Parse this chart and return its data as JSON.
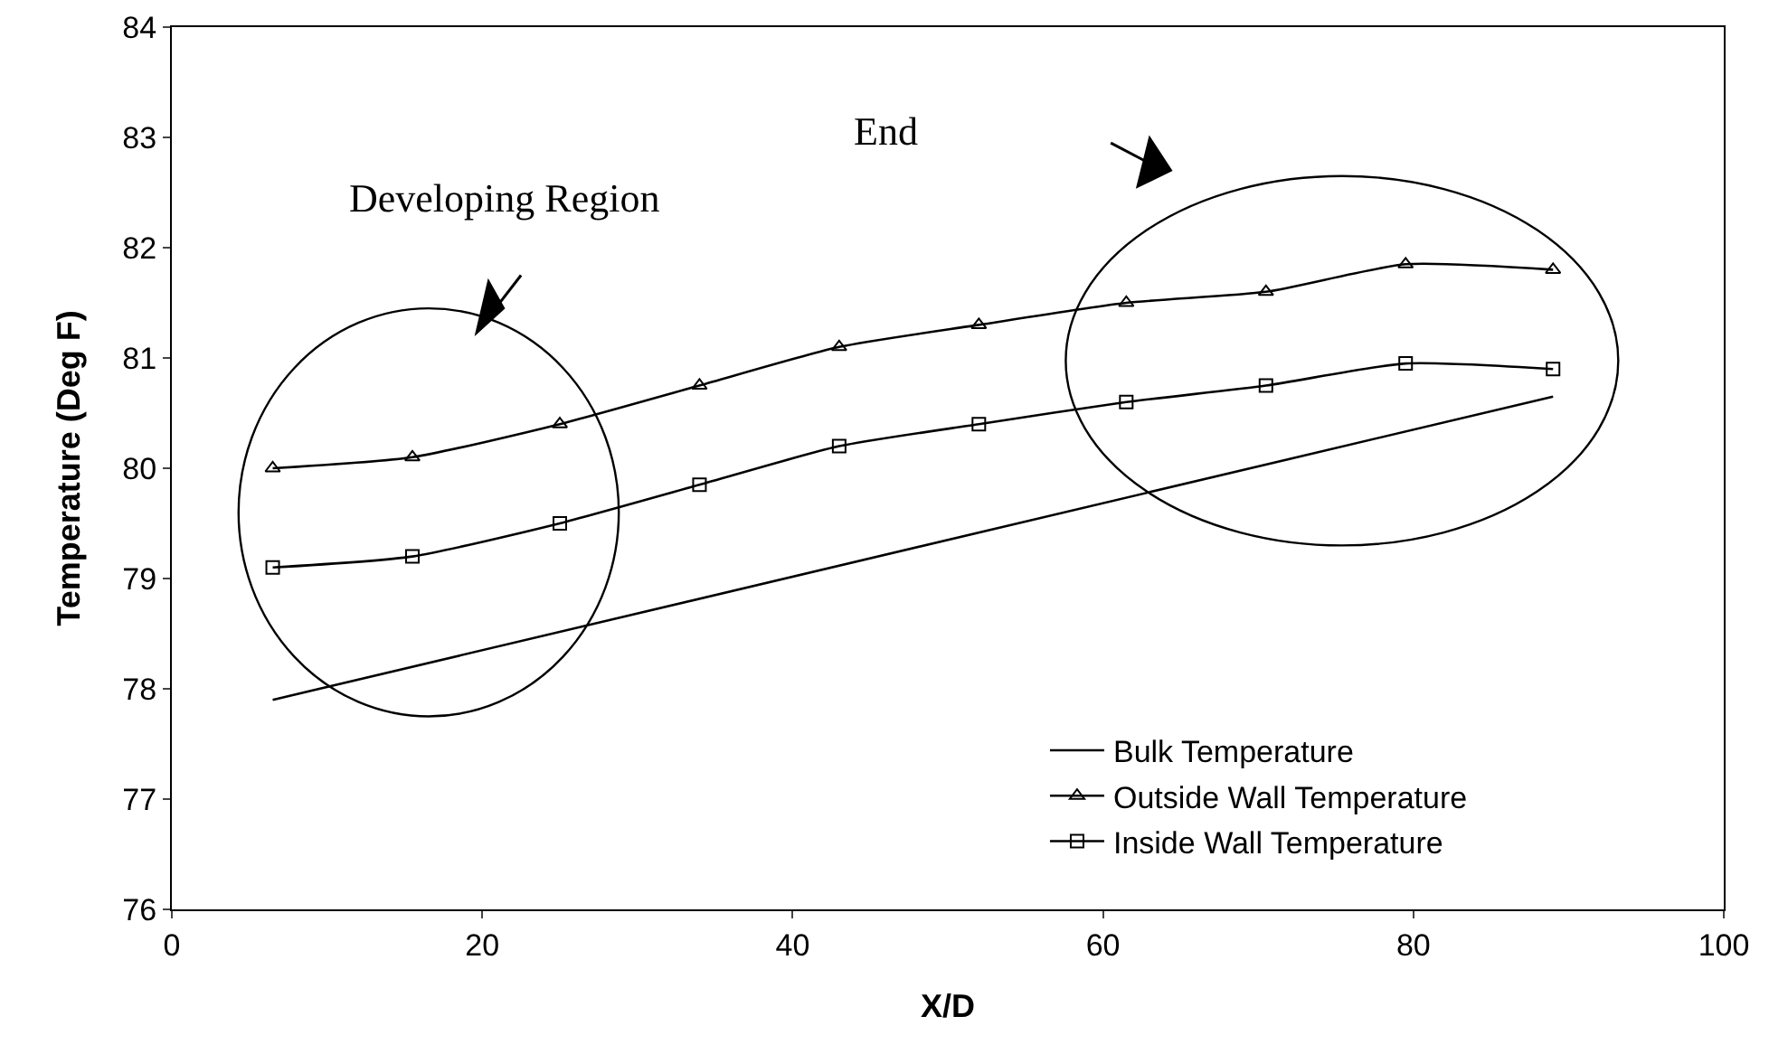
{
  "chart_data": {
    "type": "line",
    "xlabel": "X/D",
    "ylabel": "Temperature (Deg F)",
    "x": [
      6.5,
      15.5,
      25,
      34,
      43,
      52,
      61.5,
      70.5,
      79.5,
      89
    ],
    "series": [
      {
        "name": "Bulk Temperature",
        "color": "#000000",
        "marker": "none",
        "x": [
          6.5,
          89
        ],
        "values": [
          77.9,
          80.65
        ]
      },
      {
        "name": "Outside Wall Temperature",
        "color": "#000000",
        "marker": "triangle",
        "values": [
          80.0,
          80.1,
          80.4,
          80.75,
          81.1,
          81.3,
          81.5,
          81.6,
          81.85,
          81.8
        ]
      },
      {
        "name": "Inside Wall Temperature",
        "color": "#000000",
        "marker": "square",
        "values": [
          79.1,
          79.2,
          79.5,
          79.85,
          80.2,
          80.4,
          80.6,
          80.75,
          80.95,
          80.9
        ]
      }
    ],
    "xlim": [
      0,
      100
    ],
    "xticks": [
      0,
      20,
      40,
      60,
      80,
      100
    ],
    "ylim": [
      76,
      84
    ],
    "yticks": [
      76,
      77,
      78,
      79,
      80,
      81,
      82,
      83,
      84
    ],
    "grid": false,
    "legend": "bottom right",
    "annotations": [
      "Developing Region",
      "End"
    ]
  }
}
